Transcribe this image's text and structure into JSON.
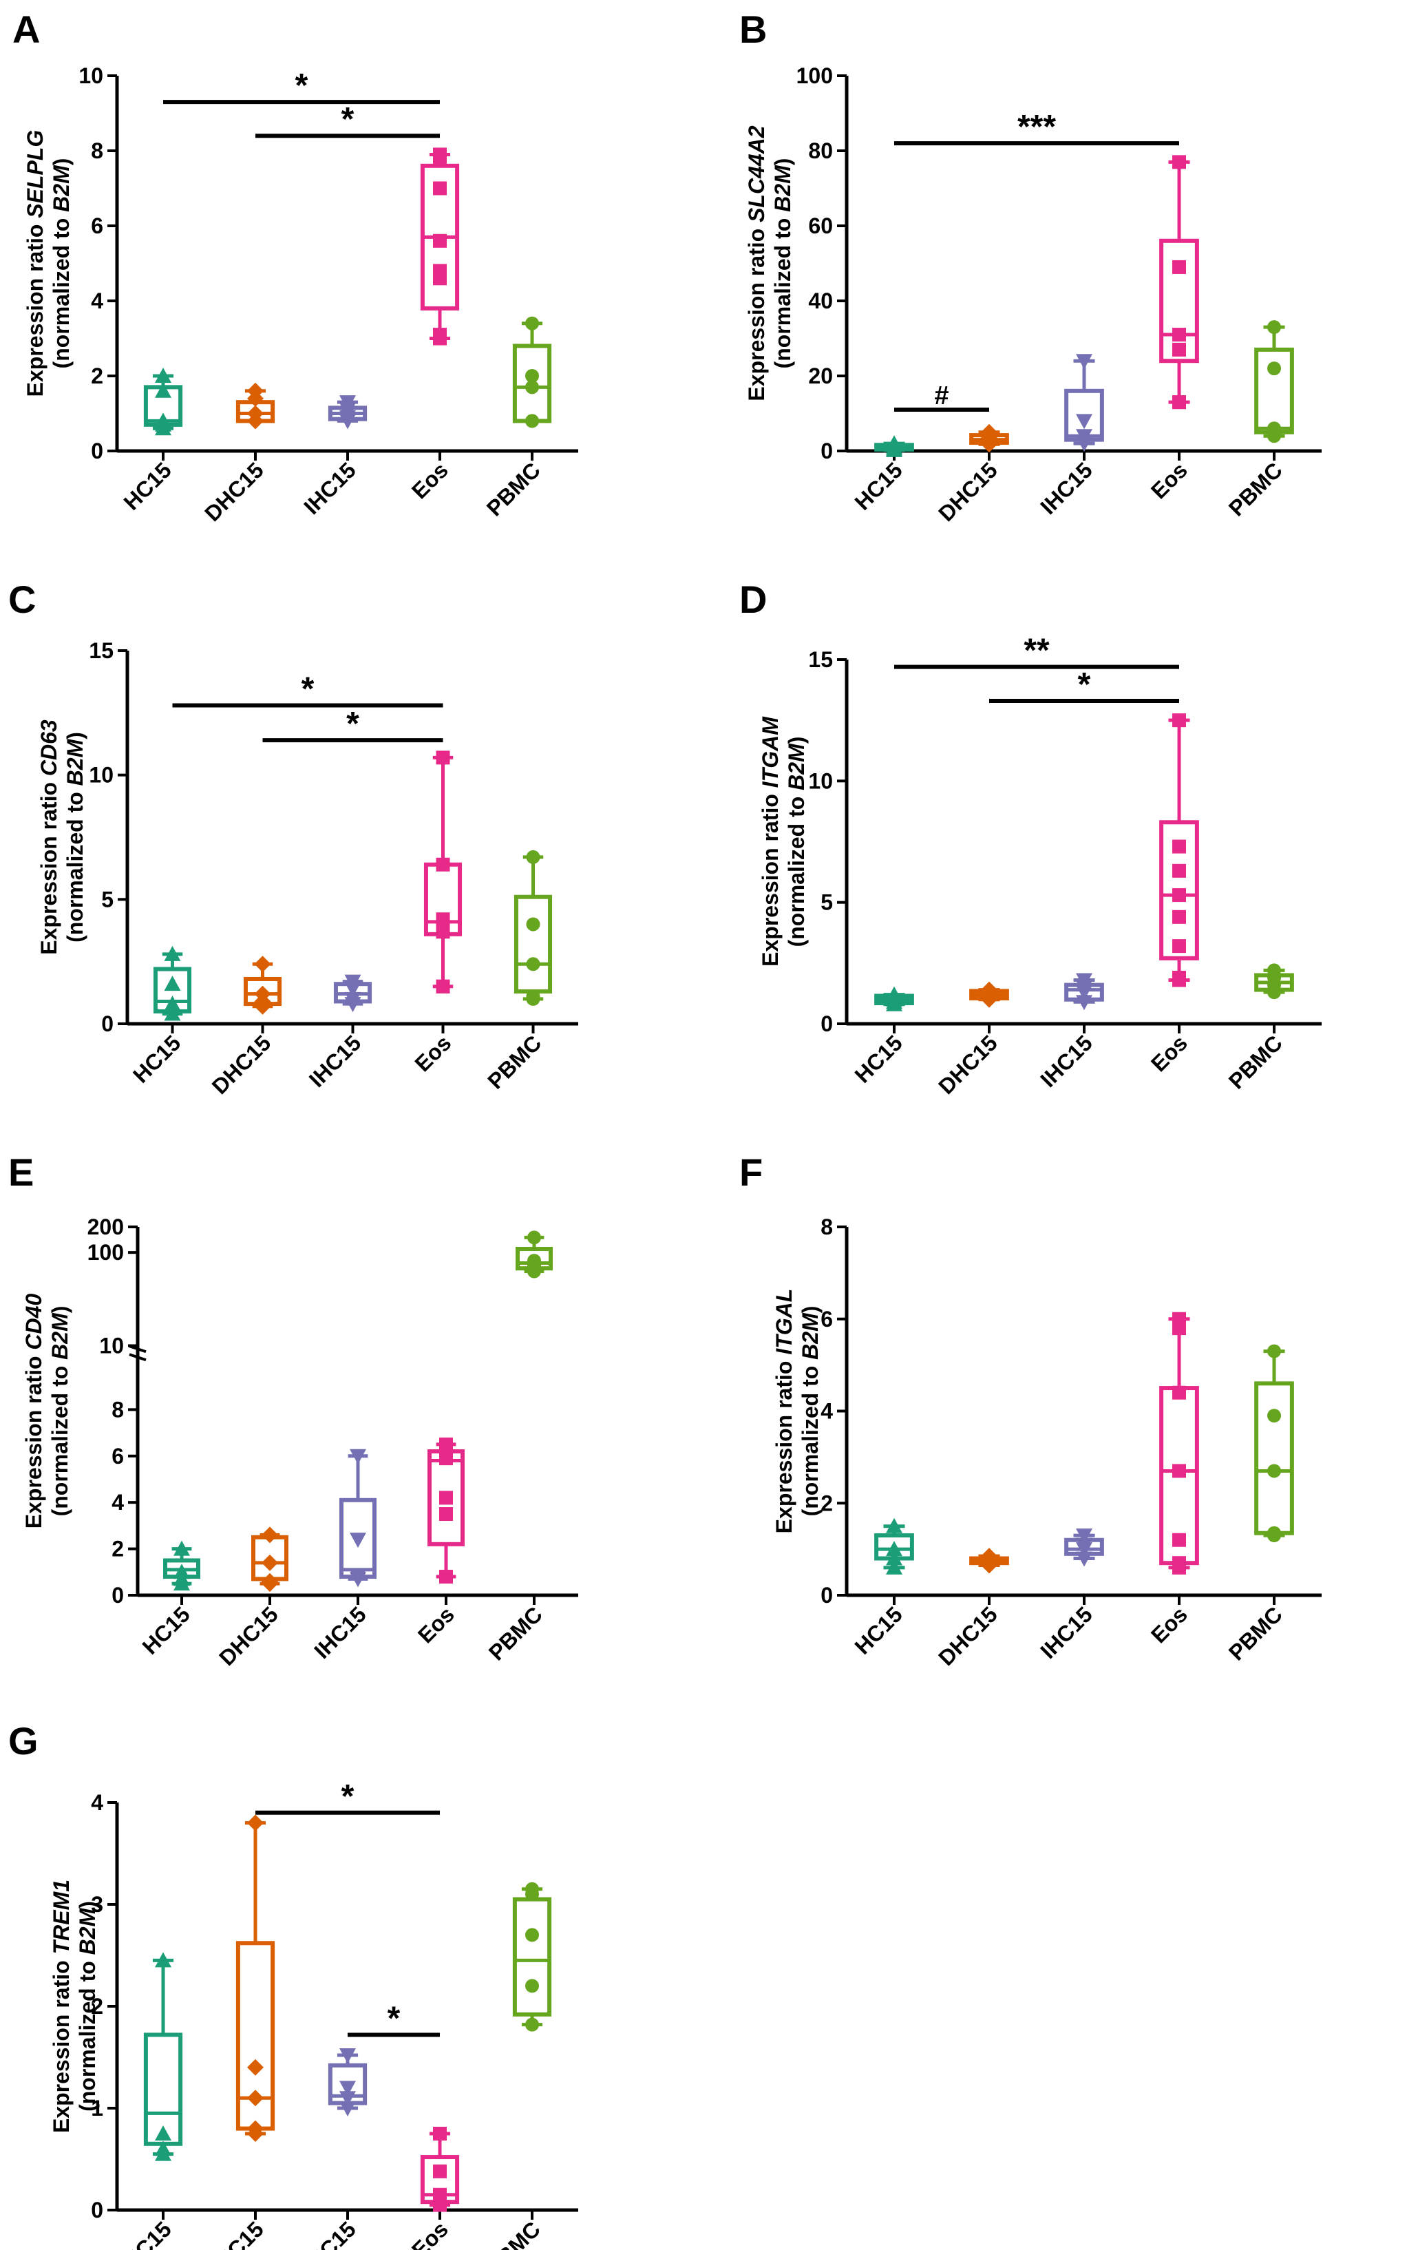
{
  "figure": {
    "categories": [
      "HC15",
      "DHC15",
      "IHC15",
      "Eos",
      "PBMC"
    ],
    "colors": [
      "#1b9e77",
      "#d95f02",
      "#7570b3",
      "#e7298a",
      "#66a61e"
    ],
    "markers": [
      "triangle",
      "diamond",
      "triangle-down",
      "square",
      "circle"
    ]
  },
  "chart_data": [
    {
      "panel": "A",
      "type": "box",
      "ylabel_prefix": "Expression ratio ",
      "gene": "SELPLG",
      "ylabel2_prefix": "(normalized to ",
      "ylabel2_ref": "B2M",
      "ylabel2_suffix": ")",
      "ylim": [
        0,
        10
      ],
      "yticks": [
        "0",
        "2",
        "4",
        "6",
        "8",
        "10"
      ],
      "boxes": [
        {
          "min": 0.6,
          "q1": 0.7,
          "median": 0.8,
          "q3": 1.7,
          "max": 2.0,
          "points": [
            1.6,
            0.7,
            0.8
          ]
        },
        {
          "min": 0.8,
          "q1": 0.8,
          "median": 1.0,
          "q3": 1.3,
          "max": 1.6,
          "points": [
            1.0,
            1.4,
            0.8
          ]
        },
        {
          "min": 0.8,
          "q1": 0.85,
          "median": 1.0,
          "q3": 1.15,
          "max": 1.3,
          "points": [
            1.0,
            1.1,
            0.9
          ]
        },
        {
          "min": 3.0,
          "q1": 3.8,
          "median": 5.7,
          "q3": 7.6,
          "max": 7.9,
          "points": [
            7.0,
            5.6,
            4.8,
            4.6,
            7.8,
            3.1
          ]
        },
        {
          "min": 0.8,
          "q1": 0.8,
          "median": 1.7,
          "q3": 2.8,
          "max": 3.4,
          "points": [
            2.0,
            1.7,
            0.8
          ]
        }
      ],
      "sig": [
        {
          "from": 0,
          "to": 3,
          "label": "*",
          "y": 9.3
        },
        {
          "from": 1,
          "to": 3,
          "label": "*",
          "y": 8.4
        }
      ]
    },
    {
      "panel": "B",
      "type": "box",
      "ylabel_prefix": "Expression ratio ",
      "gene": "SLC44A2",
      "ylabel2_prefix": "(normalized to ",
      "ylabel2_ref": "B2M",
      "ylabel2_suffix": ")",
      "ylim": [
        0,
        100
      ],
      "yticks": [
        "0",
        "20",
        "40",
        "60",
        "80",
        "100"
      ],
      "boxes": [
        {
          "min": 0.2,
          "q1": 0.4,
          "median": 0.8,
          "q3": 1.6,
          "max": 2.0,
          "points": [
            1.0,
            0.6
          ]
        },
        {
          "min": 1.8,
          "q1": 2.2,
          "median": 3.0,
          "q3": 4.2,
          "max": 5.0,
          "points": [
            3.5,
            2.5
          ]
        },
        {
          "min": 2.0,
          "q1": 3.0,
          "median": 4.0,
          "q3": 16.0,
          "max": 24.0,
          "points": [
            8.0,
            4.0
          ]
        },
        {
          "min": 13.0,
          "q1": 24.0,
          "median": 31.0,
          "q3": 56.0,
          "max": 77.0,
          "points": [
            49.0,
            27.0,
            31.0,
            13.0
          ]
        },
        {
          "min": 4.0,
          "q1": 5.0,
          "median": 6.0,
          "q3": 27.0,
          "max": 33.0,
          "points": [
            22.0,
            5.0,
            6.0
          ]
        }
      ],
      "sig": [
        {
          "from": 0,
          "to": 3,
          "label": "***",
          "y": 82.0
        },
        {
          "from": 0,
          "to": 1,
          "label": "#",
          "y": 11.0
        }
      ]
    },
    {
      "panel": "C",
      "type": "box",
      "ylabel_prefix": "Expression ratio ",
      "gene": "CD63",
      "ylabel2_prefix": "(normalized to ",
      "ylabel2_ref": "B2M",
      "ylabel2_suffix": ")",
      "ylim": [
        0,
        15
      ],
      "yticks": [
        "0",
        "5",
        "10",
        "15"
      ],
      "boxes": [
        {
          "min": 0.4,
          "q1": 0.5,
          "median": 0.9,
          "q3": 2.2,
          "max": 2.8,
          "points": [
            1.6,
            0.8
          ]
        },
        {
          "min": 0.7,
          "q1": 0.8,
          "median": 1.2,
          "q3": 1.8,
          "max": 2.4,
          "points": [
            1.2,
            0.9
          ]
        },
        {
          "min": 0.8,
          "q1": 0.9,
          "median": 1.2,
          "q3": 1.6,
          "max": 1.7,
          "points": [
            1.4,
            1.0
          ]
        },
        {
          "min": 1.5,
          "q1": 3.6,
          "median": 4.1,
          "q3": 6.4,
          "max": 10.7,
          "points": [
            6.4,
            4.1,
            4.2,
            3.7,
            1.5
          ]
        },
        {
          "min": 1.0,
          "q1": 1.3,
          "median": 2.4,
          "q3": 5.1,
          "max": 6.7,
          "points": [
            4.0,
            2.4,
            1.1
          ]
        }
      ],
      "sig": [
        {
          "from": 0,
          "to": 3,
          "label": "*",
          "y": 12.8
        },
        {
          "from": 1,
          "to": 3,
          "label": "*",
          "y": 11.4
        }
      ]
    },
    {
      "panel": "D",
      "type": "box",
      "ylabel_prefix": "Expression ratio ",
      "gene": "ITGAM",
      "ylabel2_prefix": "(normalized to ",
      "ylabel2_ref": "B2M",
      "ylabel2_suffix": ")",
      "ylim": [
        0,
        15
      ],
      "yticks": [
        "0",
        "5",
        "10",
        "15"
      ],
      "boxes": [
        {
          "min": 0.8,
          "q1": 0.85,
          "median": 1.0,
          "q3": 1.15,
          "max": 1.2,
          "points": [
            1.0,
            0.9
          ]
        },
        {
          "min": 1.0,
          "q1": 1.05,
          "median": 1.2,
          "q3": 1.35,
          "max": 1.4,
          "points": [
            1.2,
            1.1
          ]
        },
        {
          "min": 0.9,
          "q1": 1.0,
          "median": 1.4,
          "q3": 1.6,
          "max": 1.8,
          "points": [
            1.5,
            1.3
          ]
        },
        {
          "min": 1.8,
          "q1": 2.7,
          "median": 5.3,
          "q3": 8.3,
          "max": 12.5,
          "points": [
            7.3,
            6.3,
            5.3,
            4.4,
            3.2,
            1.9
          ]
        },
        {
          "min": 1.3,
          "q1": 1.4,
          "median": 1.7,
          "q3": 2.0,
          "max": 2.2,
          "points": [
            1.9,
            1.6
          ]
        }
      ],
      "sig": [
        {
          "from": 0,
          "to": 3,
          "label": "**",
          "y": 14.7
        },
        {
          "from": 1,
          "to": 3,
          "label": "*",
          "y": 13.3
        }
      ]
    },
    {
      "panel": "E",
      "type": "box",
      "ylabel_prefix": "Expression ratio ",
      "gene": "CD40",
      "ylabel2_prefix": "(normalized to ",
      "ylabel2_ref": "B2M",
      "ylabel2_suffix": ")",
      "axis_break": "segmented: 0–10 linear, 10–200 log",
      "ylim": [
        0,
        200
      ],
      "yticks": [
        "0",
        "2",
        "4",
        "6",
        "8",
        "10",
        "100",
        "200"
      ],
      "boxes": [
        {
          "min": 0.5,
          "q1": 0.8,
          "median": 1.1,
          "q3": 1.5,
          "max": 2.0,
          "points": [
            1.0,
            0.7
          ]
        },
        {
          "min": 0.5,
          "q1": 0.7,
          "median": 1.4,
          "q3": 2.5,
          "max": 2.6,
          "points": [
            1.4,
            0.6
          ]
        },
        {
          "min": 0.7,
          "q1": 0.8,
          "median": 1.1,
          "q3": 4.1,
          "max": 6.0,
          "points": [
            2.4,
            0.8
          ]
        },
        {
          "min": 0.8,
          "q1": 2.2,
          "median": 5.8,
          "q3": 6.2,
          "max": 6.5,
          "points": [
            6.0,
            4.2,
            3.5,
            5.9
          ]
        },
        {
          "min": 60.0,
          "q1": 65.0,
          "median": 75.0,
          "q3": 110.0,
          "max": 150.0,
          "points": [
            80.0,
            70.0,
            65.0
          ]
        }
      ],
      "sig": []
    },
    {
      "panel": "F",
      "type": "box",
      "ylabel_prefix": "Expression ratio ",
      "gene": "ITGAL",
      "ylabel2_prefix": "(normalized to ",
      "ylabel2_ref": "B2M",
      "ylabel2_suffix": ")",
      "ylim": [
        0,
        8
      ],
      "yticks": [
        "0",
        "2",
        "4",
        "6",
        "8"
      ],
      "boxes": [
        {
          "min": 0.6,
          "q1": 0.8,
          "median": 1.0,
          "q3": 1.3,
          "max": 1.5,
          "points": [
            1.0,
            0.8
          ]
        },
        {
          "min": 0.65,
          "q1": 0.7,
          "median": 0.75,
          "q3": 0.8,
          "max": 0.85,
          "points": [
            0.75,
            0.7
          ]
        },
        {
          "min": 0.8,
          "q1": 0.9,
          "median": 1.0,
          "q3": 1.2,
          "max": 1.3,
          "points": [
            1.0,
            1.1
          ]
        },
        {
          "min": 0.6,
          "q1": 0.7,
          "median": 2.7,
          "q3": 4.5,
          "max": 6.0,
          "points": [
            4.4,
            2.7,
            1.2,
            0.7,
            5.8
          ]
        },
        {
          "min": 1.3,
          "q1": 1.35,
          "median": 2.7,
          "q3": 4.6,
          "max": 5.3,
          "points": [
            3.9,
            2.7,
            1.35
          ]
        }
      ],
      "sig": []
    },
    {
      "panel": "G",
      "type": "box",
      "ylabel_prefix": "Expression ratio ",
      "gene": "TREM1",
      "ylabel2_prefix": "(normalized to ",
      "ylabel2_ref": "B2M",
      "ylabel2_suffix": ")",
      "ylim": [
        0,
        4
      ],
      "yticks": [
        "0",
        "1",
        "2",
        "3",
        "4"
      ],
      "boxes": [
        {
          "min": 0.55,
          "q1": 0.65,
          "median": 0.95,
          "q3": 1.72,
          "max": 2.45,
          "points": [
            0.6,
            0.75
          ]
        },
        {
          "min": 0.75,
          "q1": 0.8,
          "median": 1.1,
          "q3": 2.62,
          "max": 3.8,
          "points": [
            1.4,
            1.1,
            0.8
          ]
        },
        {
          "min": 1.0,
          "q1": 1.05,
          "median": 1.12,
          "q3": 1.42,
          "max": 1.52,
          "points": [
            1.2,
            1.1
          ]
        },
        {
          "min": 0.05,
          "q1": 0.08,
          "median": 0.15,
          "q3": 0.52,
          "max": 0.75,
          "points": [
            0.38,
            0.15,
            0.08
          ]
        },
        {
          "min": 1.82,
          "q1": 1.92,
          "median": 2.45,
          "q3": 3.05,
          "max": 3.15,
          "points": [
            2.7,
            2.2,
            3.1
          ]
        }
      ],
      "sig": [
        {
          "from": 1,
          "to": 3,
          "label": "*",
          "y": 3.9
        },
        {
          "from": 2,
          "to": 3,
          "label": "*",
          "y": 1.72
        }
      ]
    }
  ]
}
